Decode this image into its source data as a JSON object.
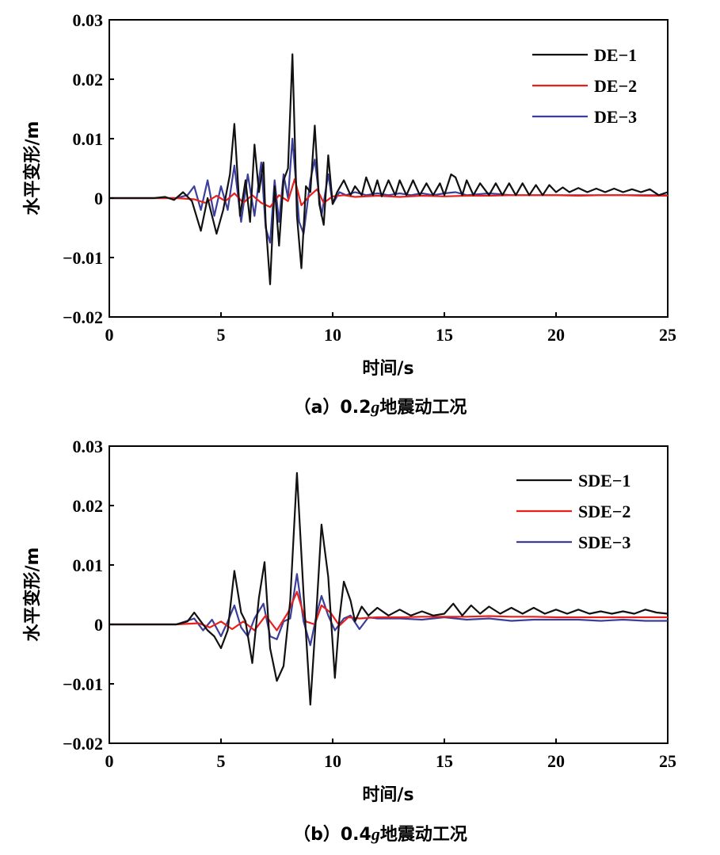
{
  "chart_data": [
    {
      "type": "line",
      "caption_prefix": "（a）0.2",
      "caption_g": "g",
      "caption_suffix": "地震动工况",
      "xlabel": "时间/s",
      "ylabel": "水平变形/m",
      "xlim": [
        0,
        25
      ],
      "ylim": [
        -0.02,
        0.03
      ],
      "xticks": [
        "0",
        "5",
        "10",
        "15",
        "20",
        "25"
      ],
      "yticks": [
        "-0.02",
        "-0.01",
        "0",
        "0.01",
        "0.02",
        "0.03"
      ],
      "grid": false,
      "legend_position": "top-right",
      "series": [
        {
          "name": "DE-1",
          "color": "#111111",
          "x": [
            0,
            1,
            2,
            2.5,
            2.9,
            3.3,
            3.7,
            4.1,
            4.4,
            4.8,
            5.1,
            5.4,
            5.6,
            5.85,
            6.1,
            6.3,
            6.5,
            6.7,
            6.9,
            7.0,
            7.2,
            7.4,
            7.6,
            7.8,
            8.0,
            8.2,
            8.4,
            8.6,
            8.8,
            9.0,
            9.2,
            9.4,
            9.6,
            9.8,
            10.0,
            10.2,
            10.5,
            10.8,
            11.0,
            11.3,
            11.5,
            11.8,
            12.0,
            12.2,
            12.5,
            12.8,
            13.0,
            13.3,
            13.6,
            13.9,
            14.2,
            14.5,
            14.8,
            15.0,
            15.3,
            15.5,
            15.8,
            16.0,
            16.3,
            16.6,
            17.0,
            17.3,
            17.6,
            17.9,
            18.2,
            18.5,
            18.8,
            19.1,
            19.4,
            19.7,
            20.0,
            20.3,
            20.6,
            21.0,
            21.4,
            21.8,
            22.2,
            22.6,
            23.0,
            23.4,
            23.8,
            24.2,
            24.6,
            25.0
          ],
          "values": [
            0,
            0,
            0,
            0.0002,
            -0.0003,
            0.001,
            -0.0005,
            -0.0055,
            0.0,
            -0.006,
            -0.002,
            0.004,
            0.0125,
            -0.003,
            0.003,
            -0.004,
            0.009,
            0.001,
            0.006,
            -0.004,
            -0.0145,
            0.002,
            -0.008,
            0.003,
            0.005,
            0.0242,
            -0.003,
            -0.0118,
            0.002,
            0.001,
            0.0122,
            -0.001,
            -0.0045,
            0.0072,
            -0.001,
            0.001,
            0.003,
            0.0005,
            0.002,
            0.0005,
            0.0035,
            0.0005,
            0.003,
            0.0003,
            0.003,
            0.0005,
            0.003,
            0.0005,
            0.003,
            0.0005,
            0.0025,
            0.0005,
            0.0025,
            0.0005,
            0.004,
            0.0035,
            0.0005,
            0.003,
            0.0005,
            0.0025,
            0.0005,
            0.0025,
            0.0005,
            0.0025,
            0.0005,
            0.0025,
            0.0005,
            0.0022,
            0.0005,
            0.0022,
            0.001,
            0.0018,
            0.001,
            0.0017,
            0.001,
            0.0016,
            0.001,
            0.0016,
            0.001,
            0.0015,
            0.001,
            0.0015,
            0.0005,
            0.001
          ]
        },
        {
          "name": "DE-2",
          "color": "#e8201c",
          "x": [
            0,
            2,
            3,
            3.8,
            4.3,
            4.8,
            5.2,
            5.6,
            6.0,
            6.4,
            6.8,
            7.2,
            7.6,
            8.0,
            8.3,
            8.6,
            9.0,
            9.3,
            9.6,
            10.0,
            10.5,
            11.0,
            12.0,
            13.0,
            14.0,
            15.0,
            16.0,
            17.0,
            18.0,
            19.0,
            20.0,
            21.0,
            22.0,
            23.0,
            24.0,
            25.0
          ],
          "values": [
            0,
            0,
            0,
            -0.0002,
            -0.0008,
            0.0004,
            -0.0005,
            0.0008,
            -0.0008,
            0.0005,
            -0.0008,
            -0.0015,
            0.0005,
            -0.0005,
            0.0032,
            -0.0012,
            0.0005,
            0.0015,
            -0.0008,
            0.0003,
            0.0005,
            0.0002,
            0.0004,
            0.0002,
            0.0004,
            0.0003,
            0.0004,
            0.0004,
            0.0005,
            0.0005,
            0.0005,
            0.0004,
            0.0005,
            0.0005,
            0.0004,
            0.0004
          ]
        },
        {
          "name": "DE-3",
          "color": "#3b3f9a",
          "x": [
            0,
            2,
            3,
            3.5,
            3.8,
            4.1,
            4.4,
            4.7,
            5.0,
            5.3,
            5.6,
            5.9,
            6.2,
            6.5,
            6.8,
            7.0,
            7.2,
            7.4,
            7.6,
            7.8,
            8.0,
            8.2,
            8.5,
            8.7,
            9.0,
            9.2,
            9.5,
            9.8,
            10.0,
            10.3,
            10.6,
            11.0,
            11.5,
            12.0,
            12.5,
            13.0,
            13.5,
            14.0,
            14.5,
            15.0,
            15.5,
            16.0,
            17.0,
            18.0,
            19.0,
            20.0,
            21.0,
            22.0,
            23.0,
            24.0,
            25.0
          ],
          "values": [
            0,
            0,
            0,
            0.0005,
            0.002,
            -0.002,
            0.003,
            -0.003,
            0.002,
            -0.002,
            0.0055,
            -0.004,
            0.004,
            -0.003,
            0.006,
            -0.005,
            -0.0075,
            0.003,
            -0.004,
            0.004,
            0.0,
            0.01,
            -0.004,
            -0.006,
            0.003,
            0.0065,
            -0.003,
            0.004,
            -0.001,
            0.001,
            0.0005,
            0.001,
            0.0005,
            0.0008,
            0.0005,
            0.0008,
            0.0005,
            0.0008,
            0.0005,
            0.0008,
            0.001,
            0.0005,
            0.0008,
            0.0005,
            0.0005,
            0.0005,
            0.0005,
            0.0005,
            0.0005,
            0.0005,
            0.0005
          ]
        }
      ]
    },
    {
      "type": "line",
      "caption_prefix": "（b）0.4",
      "caption_g": "g",
      "caption_suffix": "地震动工况",
      "xlabel": "时间/s",
      "ylabel": "水平变形/m",
      "xlim": [
        0,
        25
      ],
      "ylim": [
        -0.02,
        0.03
      ],
      "xticks": [
        "0",
        "5",
        "10",
        "15",
        "20",
        "25"
      ],
      "yticks": [
        "-0.02",
        "-0.01",
        "0",
        "0.01",
        "0.02",
        "0.03"
      ],
      "grid": false,
      "legend_position": "top-right",
      "series": [
        {
          "name": "SDE-1",
          "color": "#111111",
          "x": [
            0,
            2,
            3,
            3.5,
            3.8,
            4.1,
            4.4,
            4.7,
            5.0,
            5.3,
            5.6,
            5.9,
            6.1,
            6.4,
            6.7,
            6.95,
            7.2,
            7.5,
            7.8,
            8.1,
            8.4,
            8.7,
            9.0,
            9.3,
            9.5,
            9.8,
            10.1,
            10.3,
            10.5,
            10.8,
            11.0,
            11.3,
            11.6,
            12.0,
            12.5,
            13.0,
            13.5,
            14.0,
            14.5,
            15.0,
            15.4,
            15.8,
            16.2,
            16.6,
            17.0,
            17.5,
            18.0,
            18.5,
            19.0,
            19.5,
            20.0,
            20.5,
            21.0,
            21.5,
            22.0,
            22.5,
            23.0,
            23.5,
            24.0,
            24.5,
            25.0
          ],
          "values": [
            0,
            0,
            0,
            0.0005,
            0.002,
            0.0005,
            -0.001,
            -0.002,
            -0.004,
            -0.001,
            0.009,
            0.002,
            0.0005,
            -0.0065,
            0.0045,
            0.0105,
            -0.004,
            -0.0095,
            -0.007,
            0.004,
            0.0255,
            0.005,
            -0.0135,
            0.004,
            0.0168,
            0.008,
            -0.009,
            0.001,
            0.0072,
            0.004,
            0.0005,
            0.003,
            0.0015,
            0.0028,
            0.0015,
            0.0025,
            0.0015,
            0.0022,
            0.0015,
            0.0018,
            0.0035,
            0.0015,
            0.0032,
            0.0018,
            0.003,
            0.0018,
            0.0028,
            0.0018,
            0.0028,
            0.0018,
            0.0025,
            0.0018,
            0.0025,
            0.0018,
            0.0022,
            0.0018,
            0.0022,
            0.0018,
            0.0025,
            0.002,
            0.0018
          ]
        },
        {
          "name": "SDE-2",
          "color": "#e8201c",
          "x": [
            0,
            3,
            4,
            4.5,
            5,
            5.5,
            6,
            6.5,
            7,
            7.5,
            8,
            8.4,
            8.8,
            9.2,
            9.5,
            9.9,
            10.3,
            10.7,
            11.2,
            12,
            13,
            14,
            15,
            16,
            17,
            18,
            19,
            20,
            21,
            22,
            23,
            24,
            25
          ],
          "values": [
            0,
            0,
            0.0002,
            -0.0005,
            0.0005,
            -0.0008,
            0.0005,
            -0.001,
            0.0015,
            -0.001,
            0.002,
            0.0055,
            0.0005,
            0.0,
            0.0032,
            0.002,
            -0.0002,
            0.0012,
            0.001,
            0.0012,
            0.0012,
            0.0013,
            0.0013,
            0.0013,
            0.0014,
            0.0013,
            0.0013,
            0.0012,
            0.0012,
            0.0012,
            0.0012,
            0.0012,
            0.0012
          ]
        },
        {
          "name": "SDE-3",
          "color": "#3b3f9a",
          "x": [
            0,
            3,
            3.8,
            4.2,
            4.6,
            5.0,
            5.3,
            5.6,
            5.9,
            6.2,
            6.5,
            6.9,
            7.2,
            7.5,
            7.8,
            8.1,
            8.4,
            8.7,
            9.0,
            9.3,
            9.5,
            9.8,
            10.1,
            10.5,
            10.8,
            11.2,
            11.6,
            12.0,
            13.0,
            14.0,
            15.0,
            16.0,
            17.0,
            18.0,
            19.0,
            20.0,
            21.0,
            22.0,
            23.0,
            24.0,
            25.0
          ],
          "values": [
            0,
            0,
            0.001,
            -0.001,
            0.0008,
            -0.002,
            0.0005,
            0.0032,
            -0.0005,
            -0.002,
            0.001,
            0.0035,
            -0.002,
            -0.0025,
            0.0005,
            0.001,
            0.0085,
            0.0005,
            -0.0035,
            0.002,
            0.0048,
            0.0015,
            -0.001,
            0.001,
            0.0015,
            -0.0008,
            0.0012,
            0.001,
            0.001,
            0.0008,
            0.0012,
            0.0008,
            0.001,
            0.0006,
            0.0008,
            0.0008,
            0.0008,
            0.0006,
            0.0008,
            0.0006,
            0.0006
          ]
        }
      ]
    }
  ]
}
